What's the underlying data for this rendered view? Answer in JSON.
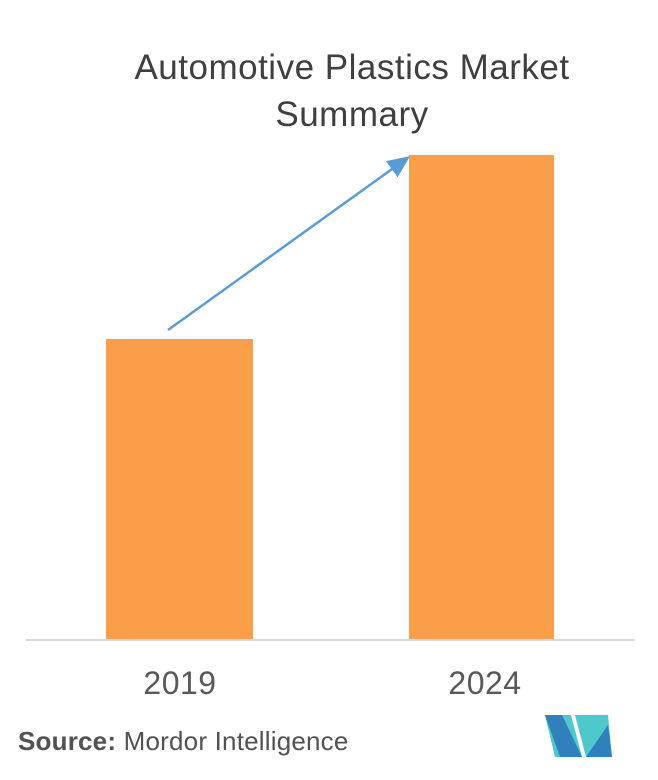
{
  "title": {
    "lines": [
      "Automotive Plastics Market",
      "Summary"
    ]
  },
  "source": {
    "label": "Source:",
    "text": " Mordor Intelligence"
  },
  "logo": {
    "name": "mordor-intelligence-logo"
  },
  "colors": {
    "bar": "#FA9E49",
    "arrow": "#5B9BD5",
    "axis_line": "#D9D9D9",
    "title_text": "#3F3F3F",
    "x_label_text": "#595959",
    "source_text": "#525252",
    "logo_teal": "#4EC8CB",
    "logo_blue": "#2F80BD",
    "background": "#FFFFFF"
  },
  "chart_data": {
    "type": "bar",
    "title": "Automotive Plastics Market Summary",
    "categories": [
      "2019",
      "2024"
    ],
    "values_pct_of_max": [
      62,
      100
    ],
    "value_axis_labels_shown": false,
    "value_data_labels_shown": false,
    "xlabel": "",
    "ylabel": "",
    "legend": "none",
    "grid": "off",
    "annotation": "straight growth arrow from top of 2019 bar to top-left corner of 2024 bar"
  }
}
